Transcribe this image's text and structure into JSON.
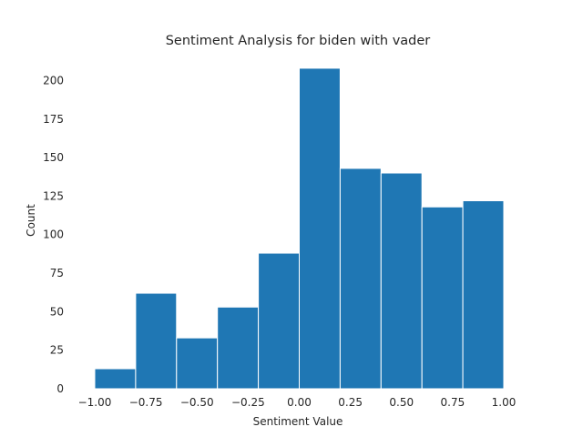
{
  "chart_data": {
    "type": "bar",
    "title": "Sentiment Analysis for biden with vader",
    "xlabel": "Sentiment Value",
    "ylabel": "Count",
    "bin_edges": [
      -1.0,
      -0.8,
      -0.6,
      -0.4,
      -0.2,
      0.0,
      0.2,
      0.4,
      0.6,
      0.8,
      1.0
    ],
    "values": [
      13,
      62,
      33,
      53,
      88,
      208,
      143,
      140,
      118,
      122
    ],
    "xlim": [
      -1.0,
      1.0
    ],
    "ylim": [
      0,
      218
    ],
    "x_ticks": [
      -1.0,
      -0.75,
      -0.5,
      -0.25,
      0.0,
      0.25,
      0.5,
      0.75,
      1.0
    ],
    "x_tick_labels": [
      "−1.00",
      "−0.75",
      "−0.50",
      "−0.25",
      "0.00",
      "0.25",
      "0.50",
      "0.75",
      "1.00"
    ],
    "y_ticks": [
      0,
      25,
      50,
      75,
      100,
      125,
      150,
      175,
      200
    ],
    "y_tick_labels": [
      "0",
      "25",
      "50",
      "75",
      "100",
      "125",
      "150",
      "175",
      "200"
    ],
    "grid": false,
    "colors": {
      "bar": "#1f77b4",
      "edge": "#ffffff"
    }
  }
}
